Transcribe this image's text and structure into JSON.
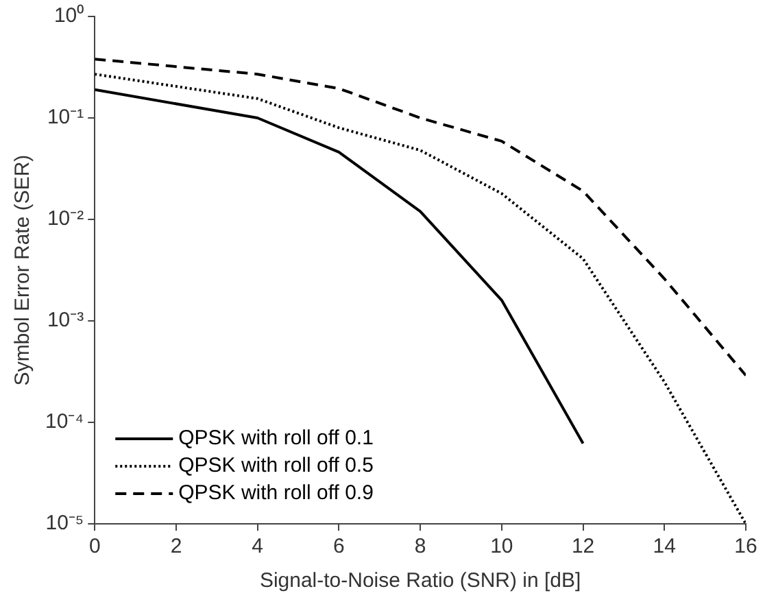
{
  "chart_data": {
    "type": "line",
    "xlabel": "Signal-to-Noise Ratio (SNR) in [dB]",
    "ylabel": "Symbol Error Rate (SER)",
    "log": "y",
    "grid": false,
    "legend": "bottom left",
    "marker": "none",
    "xlim": [
      0,
      16
    ],
    "xticks": [
      0,
      2,
      4,
      6,
      8,
      10,
      12,
      14,
      16
    ],
    "ylim": [
      1e-05,
      1
    ],
    "yticks": [
      {
        "value": 1e-05,
        "label": "10⁻⁵"
      },
      {
        "value": 0.0001,
        "label": "10⁻⁴"
      },
      {
        "value": 0.001,
        "label": "10⁻³"
      },
      {
        "value": 0.01,
        "label": "10⁻²"
      },
      {
        "value": 0.1,
        "label": "10⁻¹"
      },
      {
        "value": 1,
        "label": "10⁰"
      }
    ],
    "series": [
      {
        "name": "QPSK with roll off 0.1",
        "color": "#000000",
        "line_style": "solid",
        "x": [
          0,
          4,
          6,
          8,
          10,
          12
        ],
        "values": [
          0.19,
          0.1,
          0.046,
          0.012,
          0.0016,
          6.2e-05
        ]
      },
      {
        "name": "QPSK with roll off 0.5",
        "color": "#000000",
        "line_style": "dotted",
        "x": [
          0,
          4,
          6,
          8,
          10,
          12,
          14,
          16
        ],
        "values": [
          0.27,
          0.155,
          0.08,
          0.048,
          0.018,
          0.0041,
          0.00025,
          1e-05
        ]
      },
      {
        "name": "QPSK with roll off 0.9",
        "color": "#000000",
        "line_style": "dashed",
        "x": [
          0,
          4,
          6,
          8,
          10,
          12,
          14,
          16
        ],
        "values": [
          0.38,
          0.27,
          0.195,
          0.1,
          0.059,
          0.019,
          0.0026,
          0.00029
        ]
      }
    ]
  }
}
